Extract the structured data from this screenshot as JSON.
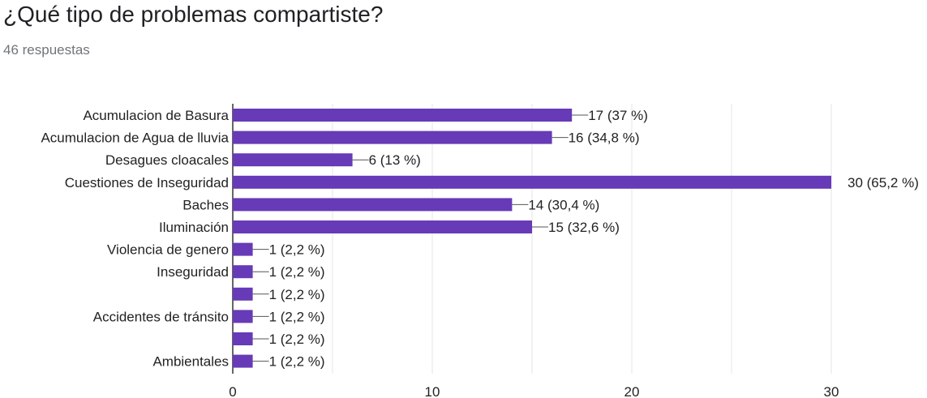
{
  "title": "¿Qué tipo de problemas compartiste?",
  "subtitle": "46 respuestas",
  "chart_data": {
    "type": "bar",
    "orientation": "horizontal",
    "categories": [
      "Acumulacion de Basura",
      "Acumulacion de Agua de lluvia",
      "Desagues cloacales",
      "Cuestiones de Inseguridad",
      "Baches",
      "Iluminación",
      "Violencia de genero",
      "Inseguridad",
      "",
      "Accidentes de tránsito",
      "",
      "Ambientales"
    ],
    "values": [
      17,
      16,
      6,
      30,
      14,
      15,
      1,
      1,
      1,
      1,
      1,
      1
    ],
    "value_labels": [
      "17 (37 %)",
      "16 (34,8 %)",
      "6 (13 %)",
      "30 (65,2 %)",
      "14 (30,4 %)",
      "15 (32,6 %)",
      "1 (2,2 %)",
      "1 (2,2 %)",
      "1 (2,2 %)",
      "1 (2,2 %)",
      "1 (2,2 %)",
      "1 (2,2 %)"
    ],
    "xticks": [
      0,
      10,
      20,
      30
    ],
    "xlim": [
      0,
      30
    ],
    "grid": true,
    "bar_color": "#673ab7"
  }
}
